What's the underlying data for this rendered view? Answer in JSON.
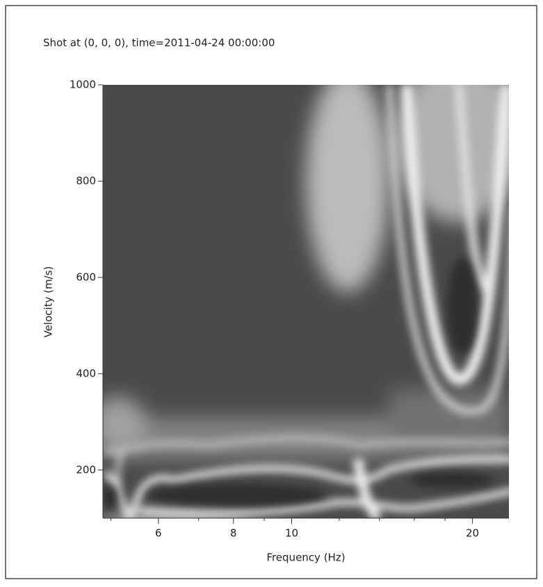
{
  "chart_data": {
    "type": "heatmap",
    "title": "Shot at (0, 0, 0), time=2011-04-24 00:00:00",
    "x_label": "Frequency (Hz)",
    "y_label": "Velocity (m/s)",
    "x_scale": "log",
    "xlim": [
      4.85,
      23
    ],
    "xticks": [
      6,
      8,
      10,
      20
    ],
    "xminorticks": [
      5,
      7,
      9,
      12,
      14,
      16,
      18
    ],
    "ylim": [
      100,
      1000
    ],
    "yticks": [
      200,
      400,
      600,
      800,
      1000
    ]
  }
}
